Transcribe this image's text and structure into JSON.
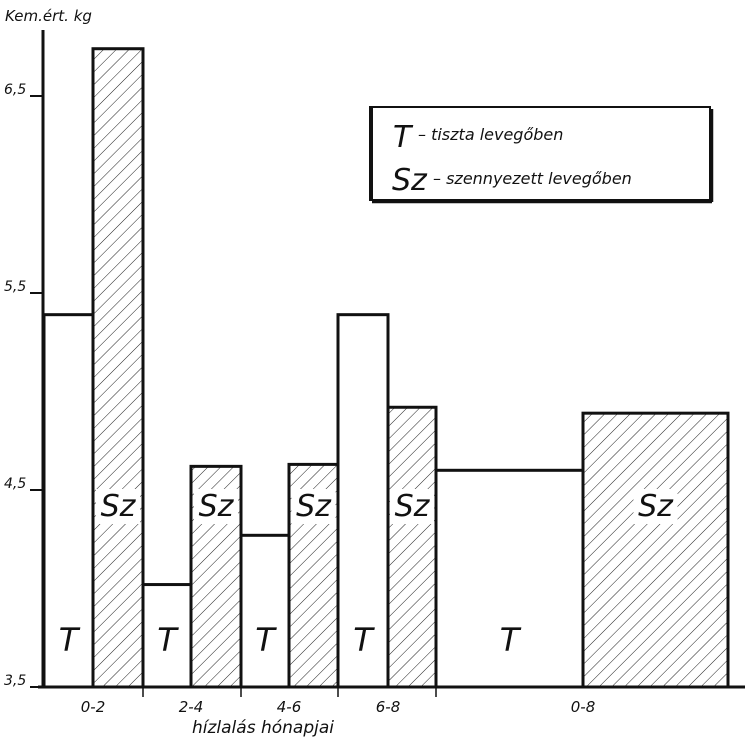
{
  "chart_data": {
    "type": "bar",
    "ylabel": "Kem.ért. kg",
    "xlabel": "hízlalás hónapjai",
    "ylim": [
      3.5,
      6.75
    ],
    "yticks": [
      "6,5",
      "5,5",
      "4,5",
      "3,5"
    ],
    "ytick_values": [
      6.5,
      5.5,
      4.5,
      3.5
    ],
    "categories": [
      "0-2",
      "2-4",
      "4-6",
      "6-8",
      "0-8"
    ],
    "series": [
      {
        "name": "tiszta levegőben",
        "label": "T",
        "values": [
          5.39,
          4.02,
          4.27,
          5.39,
          4.6
        ]
      },
      {
        "name": "szennyezett levegőben",
        "label": "Sz",
        "values": [
          6.74,
          4.62,
          4.63,
          4.92,
          4.89
        ]
      }
    ],
    "legend": {
      "placement": "top-right",
      "items": [
        {
          "key": "T",
          "text": "– tiszta levegőben"
        },
        {
          "key": "Sz",
          "text": "– szennyezett levegőben"
        }
      ]
    },
    "colors": {
      "ink": "#111111",
      "background": "#ffffff"
    }
  }
}
